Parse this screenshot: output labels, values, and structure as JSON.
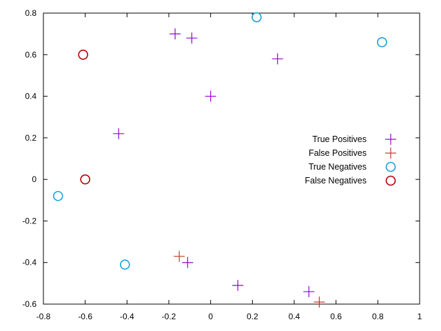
{
  "chart_data": {
    "type": "scatter",
    "title": "",
    "xlabel": "",
    "ylabel": "",
    "xlim": [
      -0.8,
      1
    ],
    "ylim": [
      -0.6,
      0.8
    ],
    "x_ticks": [
      "-0.8",
      "-0.6",
      "-0.4",
      "-0.2",
      "0",
      "0.2",
      "0.4",
      "0.6",
      "0.8",
      "1"
    ],
    "y_ticks": [
      "-0.6",
      "-0.4",
      "-0.2",
      "0",
      "0.2",
      "0.4",
      "0.6",
      "0.8"
    ],
    "grid": false,
    "legend_position": "right",
    "series": [
      {
        "name": "True Positives",
        "marker": "plus",
        "color": "#9400d3",
        "points": [
          [
            -0.17,
            0.7
          ],
          [
            -0.09,
            0.68
          ],
          [
            0.32,
            0.58
          ],
          [
            0.0,
            0.4
          ],
          [
            -0.44,
            0.22
          ],
          [
            -0.11,
            -0.4
          ],
          [
            0.13,
            -0.51
          ],
          [
            0.47,
            -0.54
          ]
        ]
      },
      {
        "name": "False Positives",
        "marker": "plus",
        "color": "#c0392b",
        "points": [
          [
            -0.15,
            -0.37
          ],
          [
            0.52,
            -0.59
          ]
        ]
      },
      {
        "name": "True Negatives",
        "marker": "circle",
        "color": "#1a9fdc",
        "points": [
          [
            0.22,
            0.78
          ],
          [
            0.82,
            0.66
          ],
          [
            -0.73,
            -0.08
          ],
          [
            -0.41,
            -0.41
          ]
        ]
      },
      {
        "name": "False Negatives",
        "marker": "circle",
        "color": "#b00000",
        "points": [
          [
            -0.61,
            0.6
          ],
          [
            -0.6,
            0.0
          ]
        ]
      }
    ]
  }
}
